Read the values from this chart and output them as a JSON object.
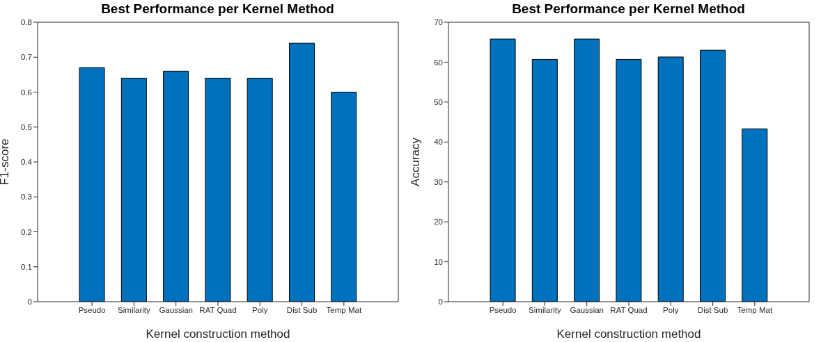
{
  "chart_data": [
    {
      "type": "bar",
      "title": "Best Performance per Kernel Method",
      "xlabel": "Kernel construction method",
      "ylabel": "F1-score",
      "categories": [
        "Pseudo",
        "Similarity",
        "Gaussian",
        "RAT Quad",
        "Poly",
        "Dist Sub",
        "Temp Mat"
      ],
      "values": [
        0.67,
        0.64,
        0.66,
        0.64,
        0.64,
        0.74,
        0.6
      ],
      "color": "#0072bd",
      "ylim": [
        0,
        0.8
      ],
      "yticks": [
        0,
        0.1,
        0.2,
        0.3,
        0.4,
        0.5,
        0.6,
        0.7,
        0.8
      ],
      "grid": false,
      "legend": false
    },
    {
      "type": "bar",
      "title": "Best Performance per Kernel Method",
      "xlabel": "Kernel construction method",
      "ylabel": "Accuracy",
      "categories": [
        "Pseudo",
        "Similarity",
        "Gaussian",
        "RAT Quad",
        "Poly",
        "Dist Sub",
        "Temp Mat"
      ],
      "values": [
        65.8,
        60.7,
        65.8,
        60.7,
        61.3,
        63.0,
        43.3
      ],
      "color": "#0072bd",
      "ylim": [
        0,
        70
      ],
      "yticks": [
        0,
        10,
        20,
        30,
        40,
        50,
        60,
        70
      ],
      "grid": false,
      "legend": false
    }
  ]
}
